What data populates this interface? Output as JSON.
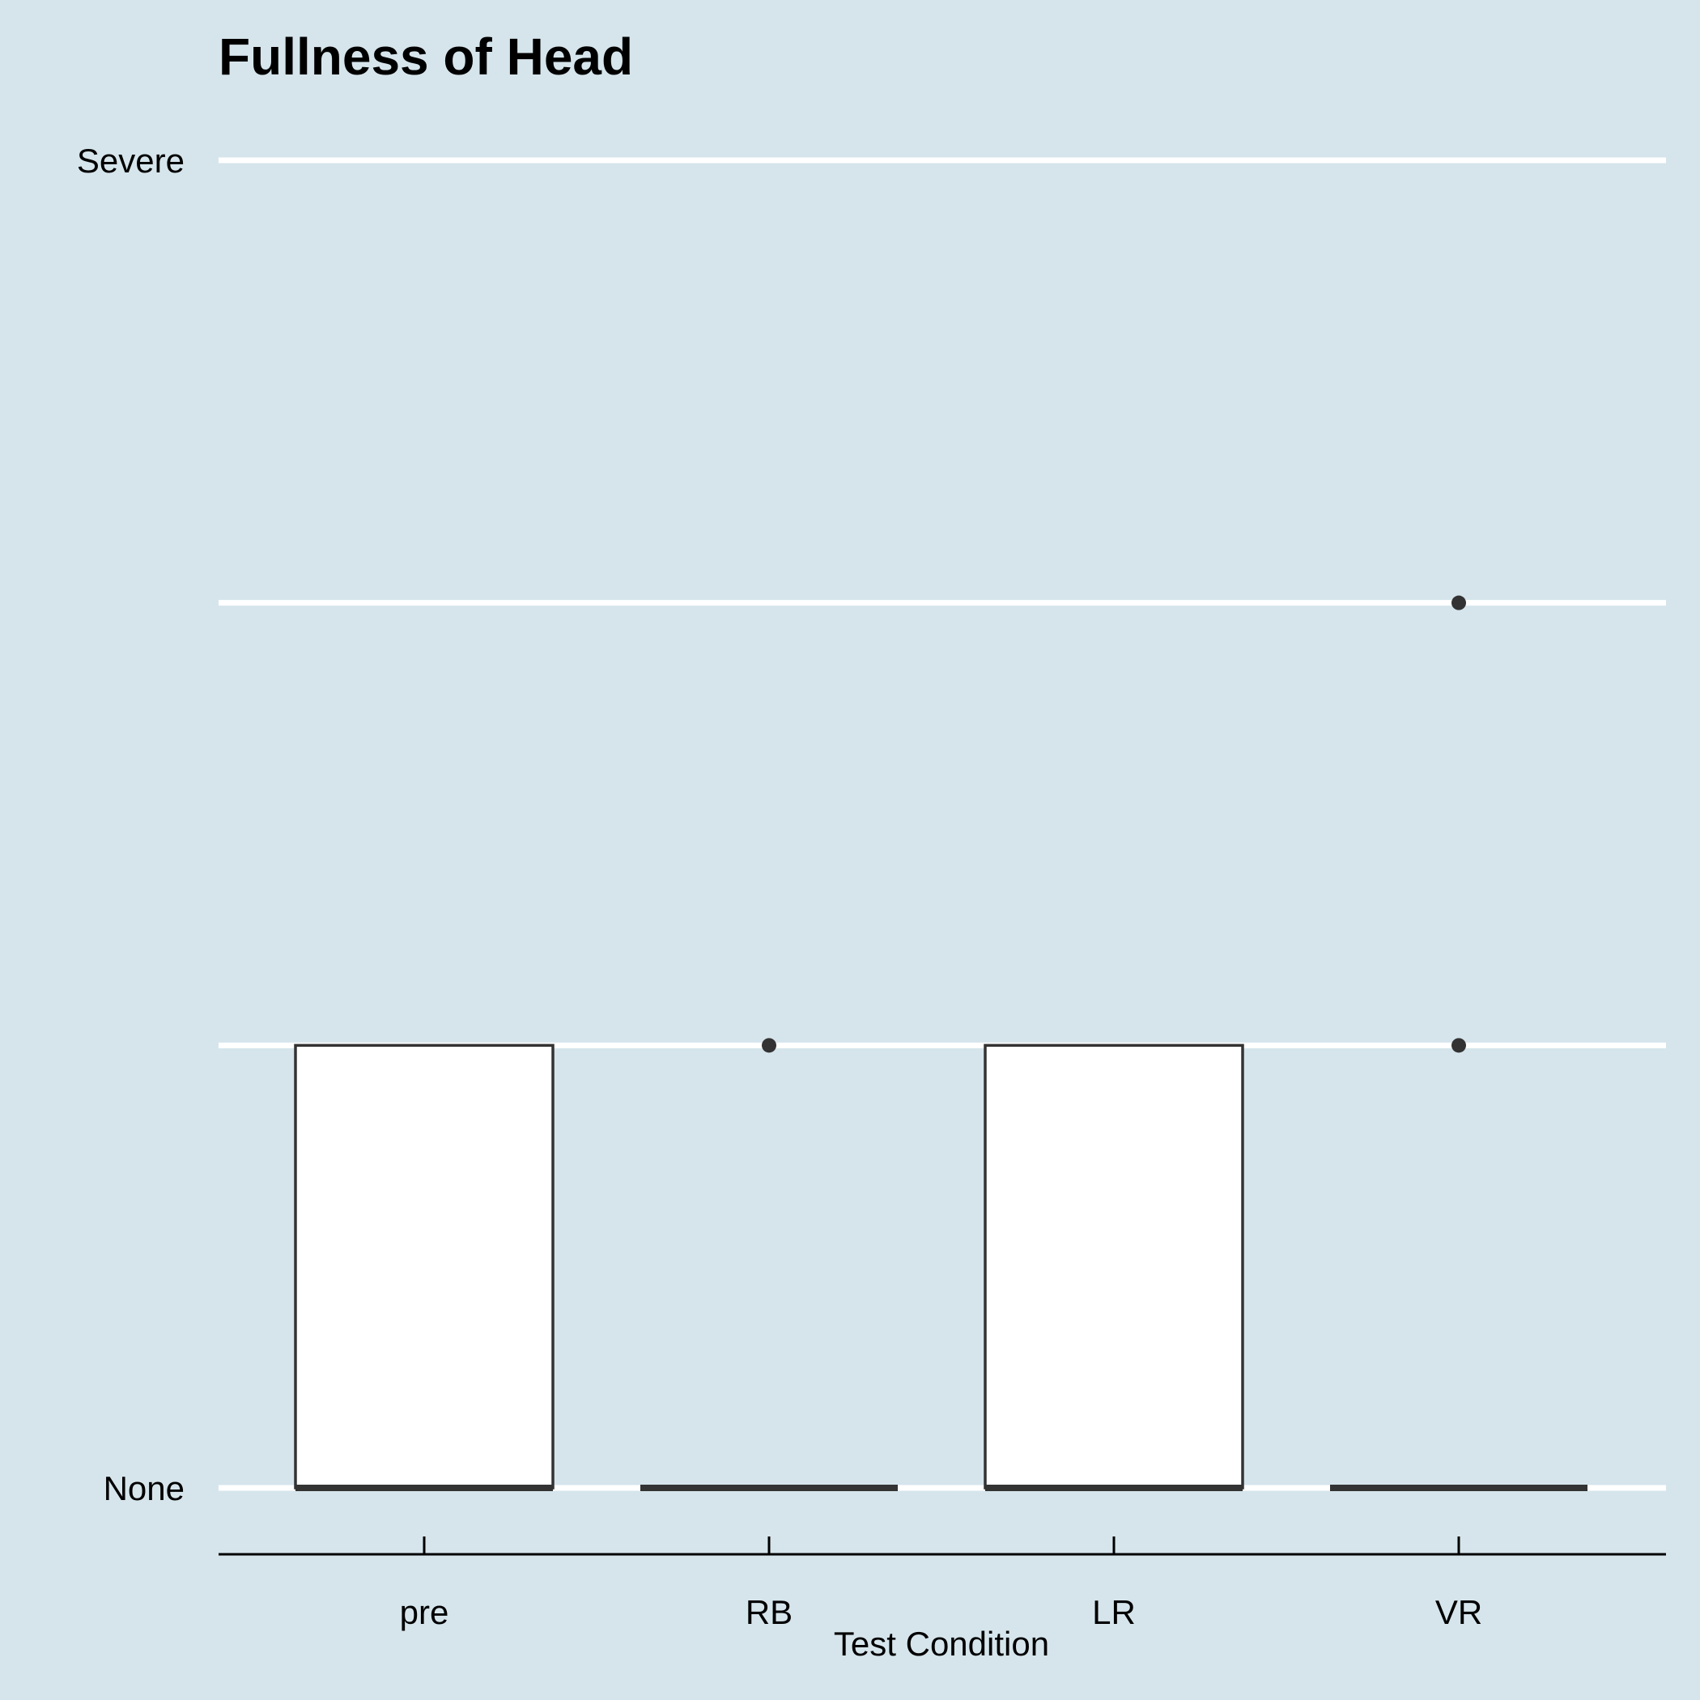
{
  "chart_data": {
    "type": "box",
    "title": "Fullness of Head",
    "xlabel": "Test Condition",
    "ylabel": "",
    "categories": [
      "pre",
      "RB",
      "LR",
      "VR"
    ],
    "ylim": [
      0,
      3
    ],
    "y_ticks": [
      {
        "value": 0,
        "label": "None"
      },
      {
        "value": 1,
        "label": ""
      },
      {
        "value": 2,
        "label": ""
      },
      {
        "value": 3,
        "label": "Severe"
      }
    ],
    "grid": "horizontal major gridlines",
    "boxes": [
      {
        "category": "pre",
        "min": 0,
        "q1": 0,
        "median": 0,
        "q3": 1,
        "max": 1,
        "outliers": []
      },
      {
        "category": "RB",
        "min": 0,
        "q1": 0,
        "median": 0,
        "q3": 0,
        "max": 0,
        "outliers": [
          1
        ]
      },
      {
        "category": "LR",
        "min": 0,
        "q1": 0,
        "median": 0,
        "q3": 1,
        "max": 1,
        "outliers": []
      },
      {
        "category": "VR",
        "min": 0,
        "q1": 0,
        "median": 0,
        "q3": 0,
        "max": 0,
        "outliers": [
          1,
          2
        ]
      }
    ],
    "colors": {
      "background": "#d6e5ec",
      "gridline": "#ffffff",
      "box_fill": "#ffffff",
      "box_stroke": "#333333",
      "axis": "#000000"
    }
  }
}
